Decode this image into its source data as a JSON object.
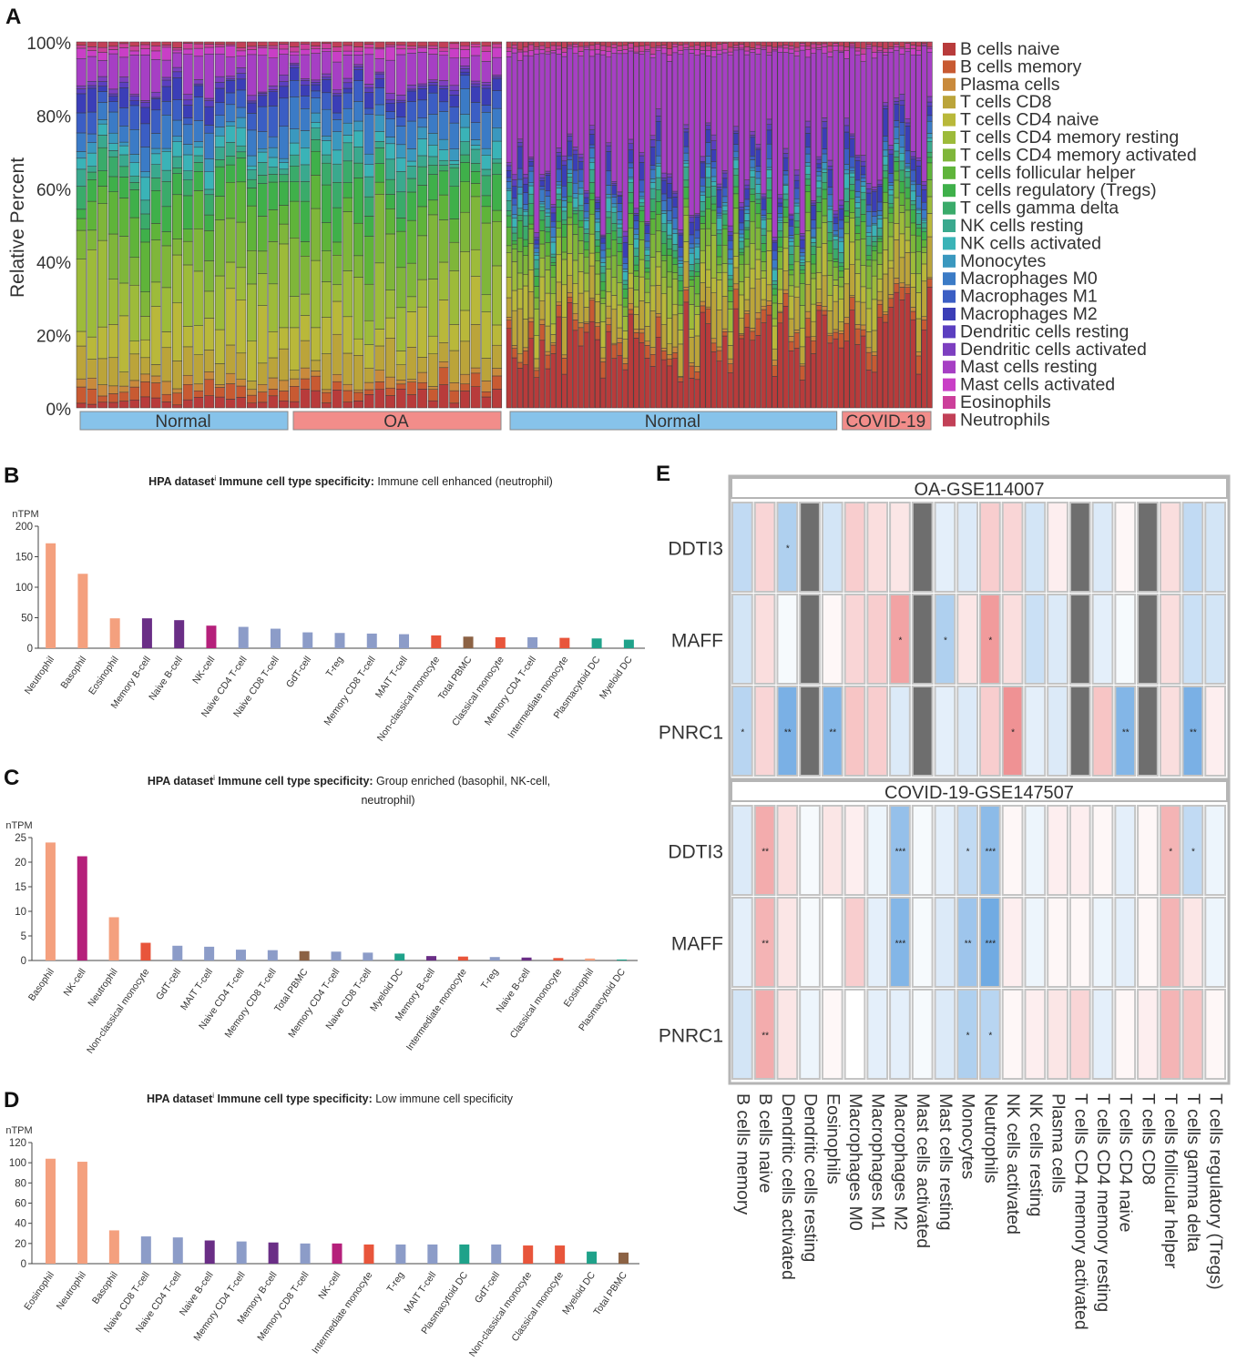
{
  "panels": {
    "a": "A",
    "b": "B",
    "c": "C",
    "d": "D",
    "e": "E"
  },
  "colors": {
    "cells": [
      "#b83b3b",
      "#c85a32",
      "#c98a3c",
      "#bba43a",
      "#b9b83a",
      "#9dbb3a",
      "#7fb63a",
      "#5fb43a",
      "#3fb04a",
      "#3aab6a",
      "#3aa98e",
      "#3ab3b7",
      "#3a98bf",
      "#3b7bc6",
      "#3b5ec4",
      "#3b3eb7",
      "#5b3fc0",
      "#7d3fc0",
      "#a63fc4",
      "#c93fc6",
      "#cc3f9a",
      "#c24057"
    ],
    "hpa_salmon": "#f4a07e",
    "hpa_purple": "#6a2e86",
    "hpa_magenta": "#b5207b",
    "hpa_slate": "#8c9cc8",
    "hpa_red": "#e8553b",
    "hpa_brown": "#8c6244",
    "hpa_teal": "#1fa28a",
    "grp_normal": "#87c3ea",
    "grp_oa": "#f28d8a",
    "grp_covid": "#f28d8a"
  },
  "chart_data": [
    {
      "type": "bar",
      "subtype": "stacked-100",
      "panel": "A",
      "title": "",
      "ylabel": "Relative Percent",
      "xlabel": "",
      "ylim": [
        0,
        100
      ],
      "ytick_labels": [
        "0%",
        "20%",
        "40%",
        "60%",
        "80%",
        "100%"
      ],
      "legend_position": "right",
      "legend": [
        "B cells naive",
        "B cells memory",
        "Plasma cells",
        "T cells CD8",
        "T cells CD4 naive",
        "T cells CD4 memory resting",
        "T cells CD4 memory activated",
        "T cells follicular helper",
        "T cells regulatory (Tregs)",
        "T cells gamma delta",
        "NK cells resting",
        "NK cells activated",
        "Monocytes",
        "Macrophages M0",
        "Macrophages M1",
        "Macrophages M2",
        "Dendritic cells resting",
        "Dendritic cells activated",
        "Mast cells resting",
        "Mast cells activated",
        "Eosinophils",
        "Neutrophils"
      ],
      "groups": [
        {
          "label": "Normal",
          "samples": 20,
          "dataset": "OA"
        },
        {
          "label": "OA",
          "samples": 20,
          "dataset": "OA"
        },
        {
          "label": "Normal",
          "samples": 60,
          "dataset": "COVID"
        },
        {
          "label": "COVID-19",
          "samples": 17,
          "dataset": "COVID"
        }
      ],
      "group_profiles_percent": {
        "OA-Normal": [
          2,
          3,
          2,
          6,
          10,
          14,
          10,
          8,
          6,
          4,
          3,
          3,
          2,
          5,
          5,
          4,
          1,
          1,
          8,
          2,
          1,
          1
        ],
        "OA": [
          4,
          3,
          2,
          7,
          8,
          12,
          12,
          8,
          8,
          4,
          3,
          3,
          3,
          6,
          4,
          3,
          1,
          1,
          6,
          2,
          1,
          1
        ],
        "COVID-Normal": [
          18,
          3,
          1,
          6,
          5,
          5,
          4,
          3,
          2,
          2,
          2,
          2,
          1,
          2,
          2,
          3,
          1,
          1,
          34,
          1,
          1,
          1
        ],
        "COVID-19": [
          22,
          3,
          1,
          7,
          6,
          5,
          4,
          3,
          2,
          2,
          2,
          2,
          1,
          2,
          2,
          4,
          1,
          1,
          26,
          1,
          1,
          1
        ]
      }
    },
    {
      "type": "bar",
      "panel": "B",
      "title_prefix": "HPA dataset",
      "title_mid": "Immune cell type specificity:",
      "title": "Immune cell enhanced (neutrophil)",
      "ylabel": "nTPM",
      "ylim": [
        0,
        200
      ],
      "yticks": [
        0,
        50,
        100,
        150,
        200
      ],
      "categories": [
        "Neutrophil",
        "Basophil",
        "Eosinophil",
        "Memory B-cell",
        "Naive B-cell",
        "NK-cell",
        "Naive CD4 T-cell",
        "Naive CD8 T-cell",
        "GdT-cell",
        "T-reg",
        "Memory CD8 T-cell",
        "MAIT T-cell",
        "Non-classical monocyte",
        "Total PBMC",
        "Classical monocyte",
        "Memory CD4 T-cell",
        "Intermediate monocyte",
        "Plasmacytoid DC",
        "Myeloid DC"
      ],
      "values": [
        172,
        122,
        49,
        49,
        46,
        37,
        35,
        32,
        26,
        25,
        24,
        23,
        21,
        19,
        18,
        18,
        17,
        16,
        14
      ],
      "bar_colors": [
        "hpa_salmon",
        "hpa_salmon",
        "hpa_salmon",
        "hpa_purple",
        "hpa_purple",
        "hpa_magenta",
        "hpa_slate",
        "hpa_slate",
        "hpa_slate",
        "hpa_slate",
        "hpa_slate",
        "hpa_slate",
        "hpa_red",
        "hpa_brown",
        "hpa_red",
        "hpa_slate",
        "hpa_red",
        "hpa_teal",
        "hpa_teal"
      ]
    },
    {
      "type": "bar",
      "panel": "C",
      "title_prefix": "HPA dataset",
      "title_mid": "Immune cell type specificity:",
      "title": "Group enriched (basophil, NK-cell,",
      "title_line2": "neutrophil)",
      "ylabel": "nTPM",
      "ylim": [
        0,
        25
      ],
      "yticks": [
        0,
        5,
        10,
        15,
        20,
        25
      ],
      "categories": [
        "Basophil",
        "NK-cell",
        "Neutrophil",
        "Non-classical monocyte",
        "GdT-cell",
        "MAIT T-cell",
        "Naive CD4 T-cell",
        "Memory CD8 T-cell",
        "Total PBMC",
        "Memory CD4 T-cell",
        "Naive CD8 T-cell",
        "Myeloid DC",
        "Memory B-cell",
        "Intermediate monocyte",
        "T-reg",
        "Naive B-cell",
        "Classical monocyte",
        "Eosinophil",
        "Plasmacytoid DC"
      ],
      "values": [
        24,
        21.2,
        8.8,
        3.6,
        3.0,
        2.8,
        2.2,
        2.1,
        1.9,
        1.8,
        1.6,
        1.4,
        0.9,
        0.8,
        0.7,
        0.6,
        0.5,
        0.4,
        0.2
      ],
      "bar_colors": [
        "hpa_salmon",
        "hpa_magenta",
        "hpa_salmon",
        "hpa_red",
        "hpa_slate",
        "hpa_slate",
        "hpa_slate",
        "hpa_slate",
        "hpa_brown",
        "hpa_slate",
        "hpa_slate",
        "hpa_teal",
        "hpa_purple",
        "hpa_red",
        "hpa_slate",
        "hpa_purple",
        "hpa_red",
        "hpa_salmon",
        "hpa_teal"
      ]
    },
    {
      "type": "bar",
      "panel": "D",
      "title_prefix": "HPA dataset",
      "title_mid": "Immune cell type specificity:",
      "title": "Low immune cell specificity",
      "ylabel": "nTPM",
      "ylim": [
        0,
        120
      ],
      "yticks": [
        0,
        20,
        40,
        60,
        80,
        100,
        120
      ],
      "categories": [
        "Eosinophil",
        "Neutrophil",
        "Basophil",
        "Naive CD8 T-cell",
        "Naive CD4 T-cell",
        "Naive B-cell",
        "Memory CD4 T-cell",
        "Memory B-cell",
        "Memory CD8 T-cell",
        "NK-cell",
        "Intermediate monocyte",
        "T-reg",
        "MAIT T-cell",
        "Plasmacytoid DC",
        "GdT-cell",
        "Non-classical monocyte",
        "Classical monocyte",
        "Myeloid DC",
        "Total PBMC"
      ],
      "values": [
        104,
        101,
        33,
        27,
        26,
        23,
        22,
        21,
        20,
        20,
        19,
        19,
        19,
        19,
        19,
        18,
        18,
        12,
        11
      ],
      "bar_colors": [
        "hpa_salmon",
        "hpa_salmon",
        "hpa_salmon",
        "hpa_slate",
        "hpa_slate",
        "hpa_purple",
        "hpa_slate",
        "hpa_purple",
        "hpa_slate",
        "hpa_magenta",
        "hpa_red",
        "hpa_slate",
        "hpa_slate",
        "hpa_teal",
        "hpa_slate",
        "hpa_red",
        "hpa_red",
        "hpa_teal",
        "hpa_brown"
      ]
    },
    {
      "type": "heatmap",
      "panel": "E",
      "columns": [
        "B cells memory",
        "B cells naive",
        "Dendritic cells activated",
        "Dendritic cells resting",
        "Eosinophils",
        "Macrophages M0",
        "Macrophages M1",
        "Macrophages M2",
        "Mast cells activated",
        "Mast cells resting",
        "Monocytes",
        "Neutrophils",
        "NK cells activated",
        "NK cells resting",
        "Plasma cells",
        "T cells CD4 memory activated",
        "T cells CD4 memory resting",
        "T cells CD4 naive",
        "T cells CD8",
        "T cells follicular helper",
        "T cells gamma delta",
        "T cells regulatory (Tregs)"
      ],
      "value_range": [
        -1,
        1
      ],
      "na_color": "#6e6e6e",
      "blocks": [
        {
          "title": "OA-GSE114007",
          "rows": [
            "DDTI3",
            "MAFF",
            "PNRC1"
          ],
          "values": [
            [
              -0.35,
              0.25,
              -0.45,
              null,
              -0.25,
              0.3,
              0.2,
              0.15,
              null,
              -0.15,
              -0.2,
              0.3,
              0.25,
              -0.25,
              0.1,
              null,
              -0.2,
              0.05,
              null,
              0.2,
              -0.35,
              -0.25
            ],
            [
              -0.25,
              0.2,
              -0.05,
              null,
              0.05,
              0.25,
              0.3,
              0.55,
              null,
              -0.45,
              0.15,
              0.6,
              0.2,
              -0.3,
              -0.2,
              null,
              -0.15,
              -0.05,
              null,
              0.2,
              -0.3,
              -0.25
            ],
            [
              -0.4,
              0.25,
              -0.75,
              null,
              -0.7,
              0.35,
              0.3,
              -0.2,
              null,
              -0.15,
              -0.2,
              0.3,
              0.65,
              -0.15,
              -0.2,
              null,
              0.35,
              -0.7,
              null,
              0.2,
              -0.75,
              0.1
            ]
          ],
          "stars": [
            [
              "",
              "",
              "*",
              "",
              "",
              "",
              "",
              "",
              "",
              "",
              "",
              "",
              "",
              "",
              "",
              "",
              "",
              "",
              "",
              "",
              "",
              ""
            ],
            [
              "",
              "",
              "",
              "",
              "",
              "",
              "",
              "*",
              "",
              "*",
              "",
              "*",
              "",
              "",
              "",
              "",
              "",
              "",
              "",
              "",
              "",
              ""
            ],
            [
              "*",
              "",
              "**",
              "",
              "**",
              "",
              "",
              "",
              "",
              "",
              "",
              "",
              "*",
              "",
              "",
              "",
              "",
              "**",
              "",
              "",
              "**",
              ""
            ]
          ]
        },
        {
          "title": "COVID-19-GSE147507",
          "rows": [
            "DDTI3",
            "MAFF",
            "PNRC1"
          ],
          "values": [
            [
              -0.2,
              0.5,
              0.2,
              -0.05,
              0.15,
              0.1,
              -0.1,
              -0.6,
              -0.05,
              -0.15,
              -0.35,
              -0.65,
              0.05,
              -0.1,
              0.1,
              0.1,
              0.05,
              -0.15,
              0.05,
              0.45,
              -0.35,
              -0.1
            ],
            [
              -0.15,
              0.45,
              0.15,
              -0.05,
              0.0,
              0.3,
              -0.15,
              -0.7,
              -0.05,
              -0.2,
              -0.55,
              -0.8,
              0.1,
              -0.1,
              0.05,
              0.05,
              -0.1,
              -0.15,
              0.05,
              0.45,
              0.15,
              -0.1
            ],
            [
              -0.25,
              0.5,
              0.15,
              -0.1,
              0.05,
              0.0,
              -0.15,
              -0.15,
              -0.05,
              -0.2,
              -0.45,
              -0.4,
              0.05,
              0.1,
              0.15,
              0.25,
              -0.15,
              0.05,
              0.1,
              0.45,
              0.35,
              0.05
            ]
          ],
          "stars": [
            [
              "",
              "**",
              "",
              "",
              "",
              "",
              "",
              "***",
              "",
              "",
              "*",
              "***",
              "",
              "",
              "",
              "",
              "",
              "",
              "",
              "*",
              "*",
              ""
            ],
            [
              "",
              "**",
              "",
              "",
              "",
              "",
              "",
              "***",
              "",
              "",
              "**",
              "***",
              "",
              "",
              "",
              "",
              "",
              "",
              "",
              "",
              "",
              ""
            ],
            [
              "",
              "**",
              "",
              "",
              "",
              "",
              "",
              "",
              "",
              "",
              "*",
              "*",
              "",
              "",
              "",
              "",
              "",
              "",
              "",
              "",
              "",
              ""
            ]
          ]
        }
      ]
    }
  ]
}
